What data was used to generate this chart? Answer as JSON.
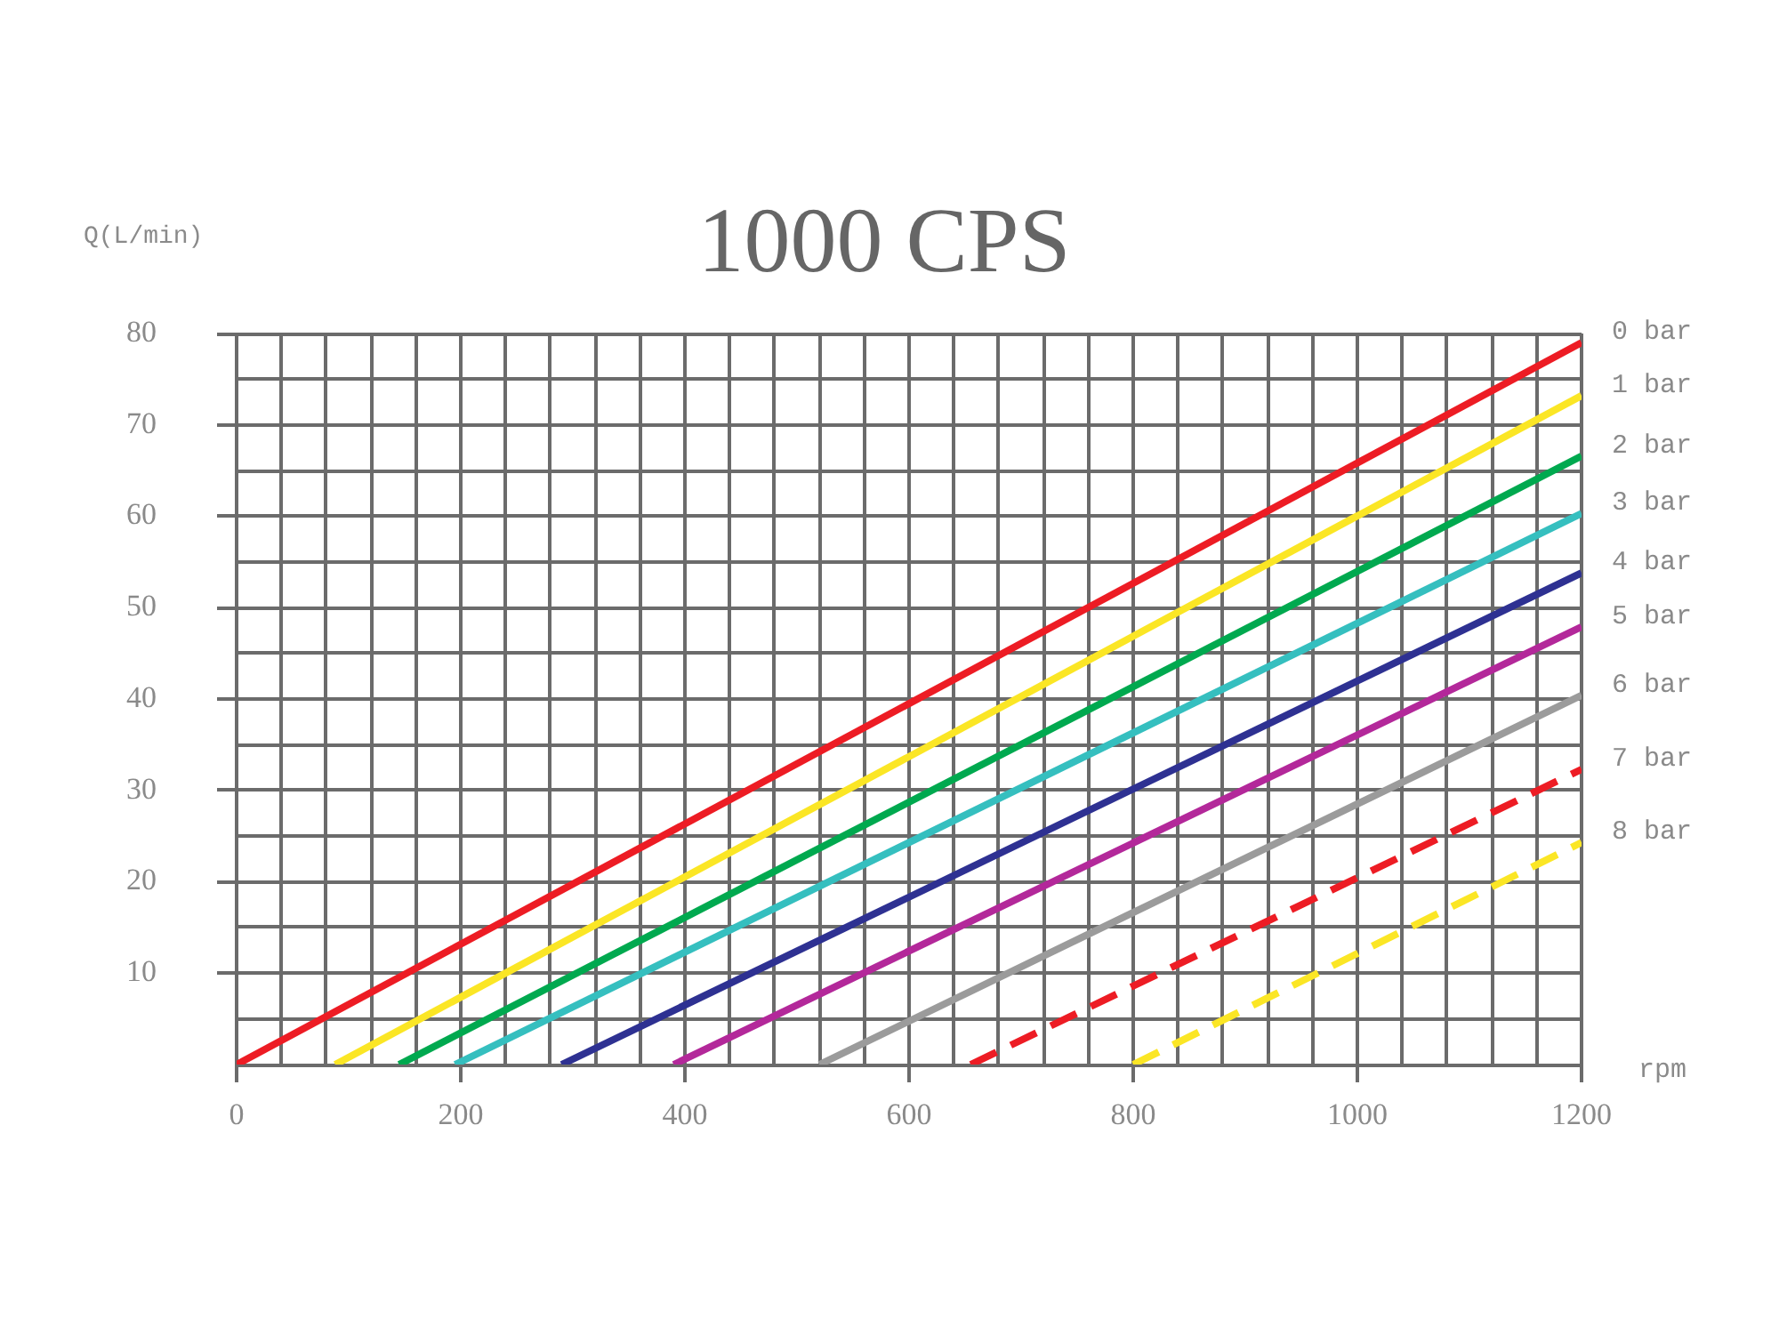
{
  "chart_data": {
    "type": "line",
    "title": "1000 CPS",
    "xlabel": "rpm",
    "ylabel": "Q(L/min)",
    "xlim": [
      0,
      1200
    ],
    "ylim": [
      0,
      80
    ],
    "xticks": [
      0,
      {
        "value": 40,
        "label": null
      },
      {
        "value": 80,
        "label": null
      },
      {
        "value": 120,
        "label": null
      },
      {
        "value": 160,
        "label": null
      },
      200,
      {
        "value": 240,
        "label": null
      },
      {
        "value": 280,
        "label": null
      },
      {
        "value": 320,
        "label": null
      },
      {
        "value": 360,
        "label": null
      },
      400,
      {
        "value": 440,
        "label": null
      },
      {
        "value": 480,
        "label": null
      },
      {
        "value": 520,
        "label": null
      },
      {
        "value": 560,
        "label": null
      },
      600,
      {
        "value": 640,
        "label": null
      },
      {
        "value": 680,
        "label": null
      },
      {
        "value": 720,
        "label": null
      },
      {
        "value": 760,
        "label": null
      },
      800,
      {
        "value": 840,
        "label": null
      },
      {
        "value": 880,
        "label": null
      },
      {
        "value": 920,
        "label": null
      },
      {
        "value": 960,
        "label": null
      },
      1000,
      {
        "value": 1040,
        "label": null
      },
      {
        "value": 1080,
        "label": null
      },
      {
        "value": 1120,
        "label": null
      },
      {
        "value": 1160,
        "label": null
      },
      1200
    ],
    "yticks": [
      {
        "value": 5,
        "label": null
      },
      10,
      {
        "value": 15,
        "label": null
      },
      20,
      {
        "value": 25,
        "label": null
      },
      30,
      {
        "value": 35,
        "label": null
      },
      40,
      {
        "value": 45,
        "label": null
      },
      50,
      {
        "value": 55,
        "label": null
      },
      60,
      {
        "value": 65,
        "label": null
      },
      70,
      {
        "value": 75,
        "label": null
      },
      80
    ],
    "grid": true,
    "legend": false,
    "marker": "none",
    "line_style": "solid",
    "series": [
      {
        "name": "0 bar",
        "color": "#ed1c24",
        "x": [
          0,
          1200
        ],
        "values": [
          0,
          79
        ]
      },
      {
        "name": "1 bar",
        "color": "#fbe625",
        "x": [
          88,
          1200
        ],
        "values": [
          0,
          73.2
        ]
      },
      {
        "name": "2 bar",
        "color": "#00a94f",
        "x": [
          145,
          1200
        ],
        "values": [
          0,
          66.6
        ]
      },
      {
        "name": "3 bar",
        "color": "#35bfbf",
        "x": [
          195,
          1200
        ],
        "values": [
          0,
          60.3
        ]
      },
      {
        "name": "4 bar",
        "color": "#2e3192",
        "x": [
          290,
          1200
        ],
        "values": [
          0,
          53.8
        ]
      },
      {
        "name": "5 bar",
        "color": "#b3289a",
        "x": [
          390,
          1200
        ],
        "values": [
          0,
          47.9
        ]
      },
      {
        "name": "6 bar",
        "color": "#9b9b9b",
        "x": [
          520,
          1200
        ],
        "values": [
          0,
          40.4
        ]
      },
      {
        "name": "7 bar",
        "color": "#ed1c24",
        "x": [
          655,
          1200
        ],
        "values": [
          0,
          32.3
        ],
        "line_style": "dashed"
      },
      {
        "name": "8 bar",
        "color": "#fbe625",
        "x": [
          800,
          1200
        ],
        "values": [
          0,
          24.3
        ],
        "line_style": "dashed"
      }
    ]
  }
}
